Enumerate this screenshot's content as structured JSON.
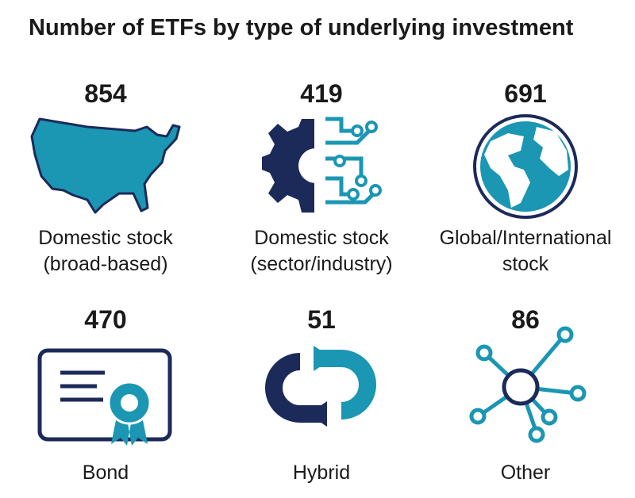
{
  "title": "Number of ETFs by type of underlying investment",
  "items": [
    {
      "value": 854,
      "label": [
        "Domestic stock",
        "(broad-based)"
      ]
    },
    {
      "value": 419,
      "label": [
        "Domestic stock",
        "(sector/industry)"
      ]
    },
    {
      "value": 691,
      "label": [
        "Global/International",
        "stock"
      ]
    },
    {
      "value": 470,
      "label": [
        "Bond"
      ]
    },
    {
      "value": 51,
      "label": [
        "Hybrid"
      ]
    },
    {
      "value": 86,
      "label": [
        "Other"
      ]
    }
  ]
}
